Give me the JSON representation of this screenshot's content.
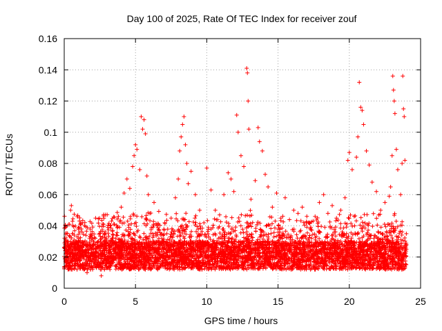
{
  "chart_data": {
    "type": "scatter",
    "title": "Day 100 of 2025, Rate Of TEC Index for receiver zouf",
    "xlabel": "GPS time / hours",
    "ylabel": "ROTI / TECUs",
    "xlim": [
      0,
      25
    ],
    "ylim": [
      0,
      0.16
    ],
    "xticks": [
      0,
      5,
      10,
      15,
      20,
      25
    ],
    "xtick_labels": [
      "0",
      "5",
      "10",
      "15",
      "20",
      "25"
    ],
    "yticks": [
      0,
      0.02,
      0.04,
      0.06,
      0.08,
      0.1,
      0.12,
      0.14,
      0.16
    ],
    "ytick_labels": [
      "0",
      "0.02",
      "0.04",
      "0.06",
      "0.08",
      "0.1",
      "0.12",
      "0.14",
      "0.16"
    ],
    "grid": true,
    "marker": "+",
    "color": "#ff0000",
    "series": [
      {
        "name": "ROTI",
        "points": [
          [
            0.1,
            0.022
          ],
          [
            0.2,
            0.018
          ],
          [
            0.3,
            0.027
          ],
          [
            0.35,
            0.041
          ],
          [
            0.45,
            0.05
          ],
          [
            0.5,
            0.053
          ],
          [
            0.6,
            0.035
          ],
          [
            0.7,
            0.015
          ],
          [
            0.8,
            0.03
          ],
          [
            0.9,
            0.012
          ],
          [
            1.0,
            0.025
          ],
          [
            1.2,
            0.038
          ],
          [
            1.4,
            0.02
          ],
          [
            1.6,
            0.01
          ],
          [
            1.8,
            0.033
          ],
          [
            2.0,
            0.018
          ],
          [
            2.2,
            0.045
          ],
          [
            2.4,
            0.022
          ],
          [
            2.6,
            0.008
          ],
          [
            2.8,
            0.03
          ],
          [
            3.0,
            0.019
          ],
          [
            3.2,
            0.026
          ],
          [
            3.4,
            0.037
          ],
          [
            3.6,
            0.029
          ],
          [
            3.8,
            0.046
          ],
          [
            4.0,
            0.052
          ],
          [
            4.2,
            0.061
          ],
          [
            4.4,
            0.07
          ],
          [
            4.6,
            0.064
          ],
          [
            4.8,
            0.078
          ],
          [
            4.9,
            0.085
          ],
          [
            5.0,
            0.092
          ],
          [
            5.1,
            0.089
          ],
          [
            5.3,
            0.076
          ],
          [
            5.4,
            0.11
          ],
          [
            5.5,
            0.102
          ],
          [
            5.6,
            0.108
          ],
          [
            5.7,
            0.099
          ],
          [
            5.8,
            0.072
          ],
          [
            5.9,
            0.06
          ],
          [
            6.0,
            0.048
          ],
          [
            6.3,
            0.055
          ],
          [
            6.6,
            0.041
          ],
          [
            6.9,
            0.03
          ],
          [
            7.2,
            0.035
          ],
          [
            7.5,
            0.045
          ],
          [
            7.8,
            0.058
          ],
          [
            8.0,
            0.07
          ],
          [
            8.1,
            0.088
          ],
          [
            8.2,
            0.097
          ],
          [
            8.3,
            0.105
          ],
          [
            8.4,
            0.11
          ],
          [
            8.5,
            0.092
          ],
          [
            8.6,
            0.08
          ],
          [
            8.7,
            0.067
          ],
          [
            8.9,
            0.075
          ],
          [
            9.2,
            0.06
          ],
          [
            9.5,
            0.05
          ],
          [
            9.8,
            0.042
          ],
          [
            10.0,
            0.077
          ],
          [
            10.3,
            0.063
          ],
          [
            10.6,
            0.05
          ],
          [
            10.9,
            0.047
          ],
          [
            11.2,
            0.06
          ],
          [
            11.5,
            0.074
          ],
          [
            11.7,
            0.07
          ],
          [
            11.9,
            0.062
          ],
          [
            12.1,
            0.111
          ],
          [
            12.2,
            0.1
          ],
          [
            12.4,
            0.085
          ],
          [
            12.6,
            0.078
          ],
          [
            12.8,
            0.141
          ],
          [
            12.85,
            0.138
          ],
          [
            12.9,
            0.12
          ],
          [
            12.95,
            0.102
          ],
          [
            13.1,
            0.057
          ],
          [
            13.4,
            0.069
          ],
          [
            13.6,
            0.103
          ],
          [
            13.7,
            0.094
          ],
          [
            13.9,
            0.088
          ],
          [
            14.1,
            0.073
          ],
          [
            14.3,
            0.065
          ],
          [
            14.6,
            0.052
          ],
          [
            14.9,
            0.061
          ],
          [
            15.2,
            0.045
          ],
          [
            15.5,
            0.058
          ],
          [
            15.8,
            0.044
          ],
          [
            16.1,
            0.05
          ],
          [
            16.4,
            0.048
          ],
          [
            16.7,
            0.052
          ],
          [
            17.0,
            0.042
          ],
          [
            17.3,
            0.039
          ],
          [
            17.6,
            0.046
          ],
          [
            17.9,
            0.055
          ],
          [
            18.2,
            0.06
          ],
          [
            18.5,
            0.048
          ],
          [
            18.8,
            0.053
          ],
          [
            19.1,
            0.045
          ],
          [
            19.4,
            0.05
          ],
          [
            19.7,
            0.058
          ],
          [
            19.9,
            0.082
          ],
          [
            20.0,
            0.087
          ],
          [
            20.2,
            0.076
          ],
          [
            20.5,
            0.084
          ],
          [
            20.6,
            0.097
          ],
          [
            20.7,
            0.132
          ],
          [
            20.8,
            0.116
          ],
          [
            20.9,
            0.114
          ],
          [
            21.0,
            0.105
          ],
          [
            21.2,
            0.088
          ],
          [
            21.4,
            0.079
          ],
          [
            21.6,
            0.068
          ],
          [
            21.9,
            0.062
          ],
          [
            22.2,
            0.05
          ],
          [
            22.5,
            0.055
          ],
          [
            22.8,
            0.059
          ],
          [
            22.9,
            0.065
          ],
          [
            23.0,
            0.085
          ],
          [
            23.05,
            0.136
          ],
          [
            23.1,
            0.127
          ],
          [
            23.15,
            0.12
          ],
          [
            23.2,
            0.112
          ],
          [
            23.3,
            0.089
          ],
          [
            23.4,
            0.076
          ],
          [
            23.6,
            0.06
          ],
          [
            23.7,
            0.08
          ],
          [
            23.75,
            0.136
          ],
          [
            23.8,
            0.115
          ],
          [
            23.85,
            0.11
          ],
          [
            23.9,
            0.082
          ],
          [
            24.0,
            0.035
          ],
          [
            24.0,
            0.025
          ]
        ]
      }
    ]
  }
}
